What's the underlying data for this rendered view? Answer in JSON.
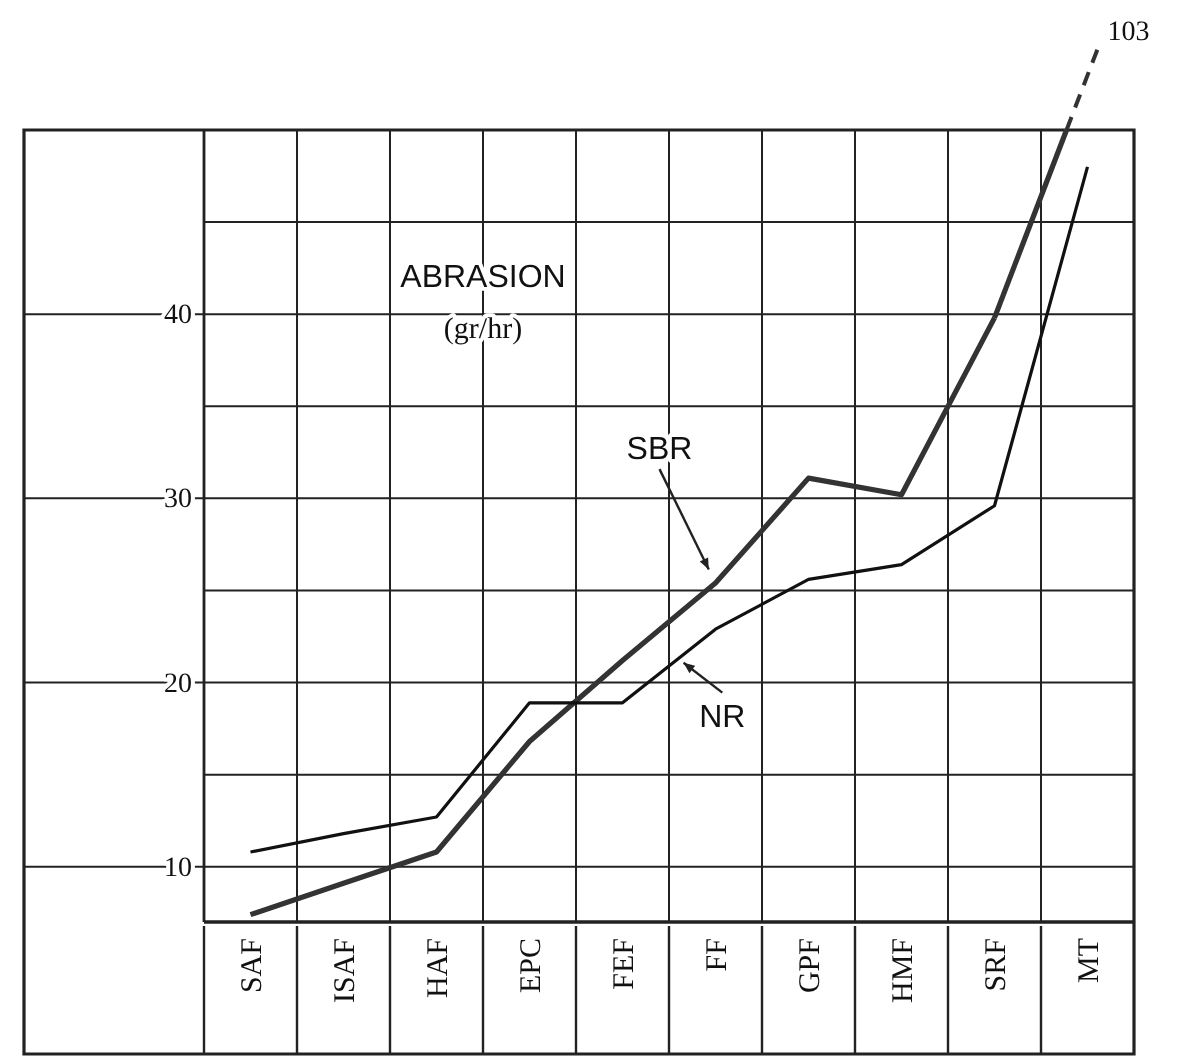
{
  "chart_data": {
    "type": "line",
    "title": "ABRASION",
    "subtitle": "(gr/hr)",
    "categories": [
      "SAF",
      "ISAF",
      "HAF",
      "EPC",
      "FEF",
      "FF",
      "GPF",
      "HMF",
      "SRF",
      "MT"
    ],
    "annotations": [
      "103"
    ],
    "series": [
      {
        "name": "SBR",
        "color": "#333333",
        "values": [
          7.4,
          9.1,
          10.8,
          16.8,
          21.2,
          25.4,
          31.1,
          30.2,
          39.8,
          null
        ]
      },
      {
        "name": "NR",
        "color": "#111111",
        "values": [
          10.8,
          11.8,
          12.7,
          18.9,
          18.9,
          22.9,
          25.6,
          26.4,
          29.6,
          48
        ]
      }
    ],
    "ylim": [
      7,
      50
    ],
    "yticks": [
      10,
      {
        "value": 15,
        "label": null
      },
      20,
      {
        "value": 25,
        "label": null
      },
      30,
      {
        "value": 35,
        "label": null
      },
      40,
      {
        "value": 45,
        "label": null
      },
      {
        "value": 50,
        "label": null
      }
    ],
    "grid": true,
    "legend": false,
    "marker": "none",
    "line_style": "solid"
  }
}
